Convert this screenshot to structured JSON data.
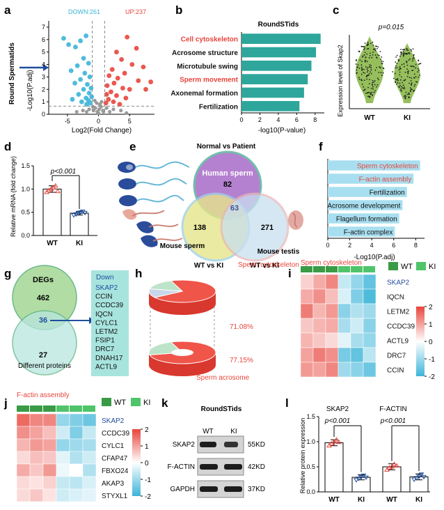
{
  "labels": {
    "a": "a",
    "b": "b",
    "c": "c",
    "d": "d",
    "e": "e",
    "f": "f",
    "g": "g",
    "h": "h",
    "i": "i",
    "j": "j",
    "k": "k",
    "l": "l"
  },
  "colors": {
    "teal": "#2ea69b",
    "red": "#e8453c",
    "blue": "#3cb4d8",
    "green": "#3a9b46",
    "lightgreen": "#4fc46a",
    "lightblue": "#a8dff0"
  },
  "panel_a": {
    "down_label": "DOWN:261",
    "up_label": "UP:237",
    "side_label": "Round Spermatids",
    "ylabel": "-Log10(P.adj)",
    "xlabel": "Log2(Fold Change)",
    "yticks": [
      "0",
      "1",
      "2",
      "3",
      "4",
      "5",
      "6",
      "7"
    ],
    "xticks": [
      "-5",
      "0",
      "5"
    ],
    "chart_data": {
      "type": "scatter",
      "xlim": [
        -8,
        9
      ],
      "ylim": [
        0,
        7.5
      ],
      "thresholds": {
        "logfc": [
          -1,
          1
        ],
        "padj": 0.65
      },
      "down_points": [
        [
          -5.6,
          6.1
        ],
        [
          -4.8,
          5.6
        ],
        [
          -3.7,
          5.4
        ],
        [
          -2.9,
          5.9
        ],
        [
          -2.0,
          6.3
        ],
        [
          -2.4,
          4.5
        ],
        [
          -1.6,
          4.1
        ],
        [
          -3.4,
          3.9
        ],
        [
          -4.4,
          3.5
        ],
        [
          -2.2,
          3.3
        ],
        [
          -1.4,
          3.0
        ],
        [
          -2.9,
          2.8
        ],
        [
          -1.8,
          2.4
        ],
        [
          -3.8,
          2.5
        ],
        [
          -1.2,
          2.1
        ],
        [
          -2.4,
          2.0
        ],
        [
          -1.5,
          1.7
        ],
        [
          -3.2,
          1.6
        ],
        [
          -1.1,
          1.4
        ],
        [
          -2.0,
          1.3
        ],
        [
          -1.6,
          1.1
        ],
        [
          -2.7,
          1.0
        ],
        [
          -1.3,
          0.9
        ],
        [
          -4.2,
          1.2
        ],
        [
          -1.9,
          0.8
        ]
      ],
      "up_points": [
        [
          4.6,
          6.2
        ],
        [
          6.1,
          5.3
        ],
        [
          2.9,
          5.0
        ],
        [
          3.7,
          4.4
        ],
        [
          5.4,
          4.0
        ],
        [
          7.2,
          3.8
        ],
        [
          2.2,
          3.6
        ],
        [
          4.2,
          3.3
        ],
        [
          1.7,
          3.1
        ],
        [
          3.1,
          2.9
        ],
        [
          6.4,
          2.7
        ],
        [
          2.5,
          2.5
        ],
        [
          1.4,
          2.3
        ],
        [
          3.9,
          2.1
        ],
        [
          5.0,
          2.0
        ],
        [
          2.0,
          1.8
        ],
        [
          1.3,
          1.6
        ],
        [
          2.9,
          1.5
        ],
        [
          4.4,
          1.3
        ],
        [
          1.6,
          1.2
        ],
        [
          2.4,
          1.0
        ],
        [
          1.2,
          0.9
        ],
        [
          3.4,
          0.8
        ],
        [
          8.4,
          2.6
        ],
        [
          7.6,
          2.0
        ]
      ],
      "ns_points": [
        [
          -0.8,
          0.3
        ],
        [
          -0.5,
          0.5
        ],
        [
          -0.2,
          0.2
        ],
        [
          0.1,
          0.4
        ],
        [
          0.4,
          0.6
        ],
        [
          0.7,
          0.3
        ],
        [
          -1.5,
          0.4
        ],
        [
          1.3,
          0.5
        ],
        [
          -0.3,
          0.9
        ],
        [
          0.2,
          0.8
        ],
        [
          -2.5,
          0.3
        ],
        [
          2.4,
          0.4
        ],
        [
          -0.9,
          0.6
        ],
        [
          0.8,
          0.2
        ],
        [
          -3.5,
          0.2
        ],
        [
          3.6,
          0.3
        ],
        [
          0.0,
          0.1
        ],
        [
          -0.6,
          1.1
        ],
        [
          0.5,
          1.0
        ],
        [
          1.8,
          0.2
        ],
        [
          -1.9,
          0.2
        ],
        [
          4.5,
          0.1
        ]
      ]
    }
  },
  "panel_b": {
    "title": "RoundSTids",
    "xlabel": "-log10(P-value)",
    "xticks": [
      "0",
      "2",
      "4",
      "6",
      "8"
    ],
    "chart_data": {
      "type": "bar",
      "orientation": "horizontal",
      "xlim": [
        0,
        9
      ],
      "categories": [
        "Cell cytoskeleton",
        "Acrosome structure",
        "Microtubule swing",
        "Sperm movement",
        "Axonemal formation",
        "Fertilization"
      ],
      "values": [
        8.6,
        8.1,
        7.6,
        7.2,
        6.8,
        6.3
      ],
      "highlight": [
        true,
        false,
        false,
        true,
        false,
        false
      ]
    }
  },
  "panel_c": {
    "pvalue": "p=0.015",
    "ylabel": "Expression level of Skap2",
    "chart_data": {
      "type": "violin",
      "categories": [
        "WT",
        "KI"
      ]
    }
  },
  "panel_d": {
    "ylabel": "Relative mRNA (fold change)",
    "pvalue": "p<0.001",
    "yticks": [
      "0.0",
      "0.5",
      "1.0",
      "1.5"
    ],
    "chart_data": {
      "type": "bar",
      "ylim": [
        0,
        1.5
      ],
      "categories": [
        "WT",
        "KI"
      ],
      "values": [
        1.0,
        0.48
      ],
      "errors": [
        0.07,
        0.04
      ],
      "wt_points": [
        0.93,
        0.97,
        1.0,
        1.03,
        1.07,
        0.95
      ],
      "ki_points": [
        0.44,
        0.46,
        0.48,
        0.5,
        0.52,
        0.49
      ]
    }
  },
  "panel_e": {
    "title": "Normal vs Patient",
    "sets": {
      "human": "Human sperm",
      "mouse_sperm": "Mouse sperm",
      "mouse_testis": "Mouse testis"
    },
    "counts": {
      "human": "82",
      "center": "63",
      "sperm": "138",
      "testis": "271"
    },
    "comparisons": [
      "WT vs KI",
      "WT vs KI"
    ]
  },
  "panel_f": {
    "xlabel": "-Log10(P.adj)",
    "xticks": [
      "0",
      "2",
      "4",
      "6",
      "8"
    ],
    "chart_data": {
      "type": "bar",
      "orientation": "horizontal",
      "xlim": [
        0,
        8.8
      ],
      "categories": [
        "Sperm cytoskeleton",
        "F-actin assembly",
        "Fertilization",
        "Acrosome development",
        "Flagellum formation",
        "F-actin complex"
      ],
      "values": [
        8.4,
        7.8,
        7.2,
        6.8,
        6.5,
        6.1
      ],
      "highlight": [
        true,
        true,
        false,
        false,
        false,
        false
      ]
    }
  },
  "panel_g": {
    "set1": "DEGs",
    "set2": "Different proteins",
    "n1": "462",
    "n_overlap": "36",
    "n2": "27",
    "list_title": "Down",
    "genes": [
      "SKAP2",
      "CCIN",
      "CCDC39",
      "IQCN",
      "CYLC1",
      "LETM2",
      "FSIP1",
      "DRC7",
      "DNAH17",
      "ACTL9"
    ]
  },
  "panel_h": {
    "label_top": "Sperm cytoskeleton",
    "label_bottom": "Sperm acrosome",
    "pct_top": "71.08%",
    "pct_bottom": "77.15%",
    "chart_data": {
      "type": "pie",
      "series": [
        {
          "name": "Sperm cytoskeleton",
          "values": [
            71.08,
            28.92
          ]
        },
        {
          "name": "Sperm acrosome",
          "values": [
            77.15,
            22.85
          ]
        }
      ]
    }
  },
  "panel_i": {
    "title": "Sperm cytoskeleton",
    "legend": {
      "wt": "WT",
      "ki": "KI"
    },
    "genes": [
      "SKAP2",
      "IQCN",
      "LETM2",
      "CCDC39",
      "ACTL9",
      "DRC7",
      "CCIN"
    ],
    "scale": [
      "2",
      "1",
      "0",
      "-1",
      "-2"
    ],
    "chart_data": {
      "type": "heatmap",
      "columns": [
        "WT",
        "WT",
        "WT",
        "KI",
        "KI",
        "KI"
      ],
      "rows": [
        [
          0.5,
          0.9,
          1.3,
          -0.6,
          -1.1,
          -1.6
        ],
        [
          0.9,
          1.2,
          0.7,
          -0.4,
          -1.3,
          -1.8
        ],
        [
          1.4,
          0.8,
          1.1,
          -1.2,
          -0.8,
          -1.0
        ],
        [
          0.6,
          0.8,
          0.9,
          -0.9,
          -0.5,
          -1.2
        ],
        [
          0.8,
          0.6,
          0.4,
          -0.3,
          -0.9,
          -1.1
        ],
        [
          1.0,
          1.4,
          1.2,
          -1.4,
          -1.6,
          -0.7
        ],
        [
          1.1,
          1.0,
          1.3,
          -1.0,
          -1.2,
          -1.5
        ]
      ]
    }
  },
  "panel_j": {
    "title": "F-actin assembly",
    "legend": {
      "wt": "WT",
      "ki": "KI"
    },
    "genes": [
      "SKAP2",
      "CCDC39",
      "CYLC1",
      "CFAP47",
      "FBXO24",
      "AKAP3",
      "STYXL1"
    ],
    "scale": [
      "2",
      "1",
      "0",
      "-1",
      "-2"
    ],
    "chart_data": {
      "type": "heatmap",
      "columns": [
        "WT",
        "WT",
        "WT",
        "KI",
        "KI",
        "KI"
      ],
      "rows": [
        [
          1.6,
          1.3,
          1.3,
          -1.1,
          -1.3,
          -1.5
        ],
        [
          1.2,
          1.0,
          0.7,
          -0.5,
          -1.3,
          -0.6
        ],
        [
          0.8,
          1.1,
          1.0,
          -1.1,
          -1.0,
          -0.9
        ],
        [
          0.4,
          0.7,
          0.6,
          -0.3,
          -0.8,
          -0.5
        ],
        [
          0.9,
          0.6,
          1.1,
          -0.2,
          0.0,
          -0.8
        ],
        [
          0.4,
          0.3,
          0.5,
          -0.6,
          -0.7,
          -0.4
        ],
        [
          0.4,
          0.6,
          0.3,
          -0.5,
          -0.4,
          -0.3
        ]
      ]
    }
  },
  "panel_k": {
    "title": "RoundSTids",
    "cols": [
      "WT",
      "KI"
    ],
    "bands": [
      {
        "name": "SKAP2",
        "kd": "55KD"
      },
      {
        "name": "F-ACTIN",
        "kd": "42KD"
      },
      {
        "name": "GAPDH",
        "kd": "37KD"
      }
    ]
  },
  "panel_l": {
    "ylabel": "Relative protein expression",
    "yticks": [
      "0.0",
      "0.5",
      "1.0",
      "1.5"
    ],
    "groups": [
      "SKAP2",
      "F-ACTIN"
    ],
    "pvalues": [
      "p<0.001",
      "p<0.001"
    ],
    "chart_data": {
      "type": "bar",
      "ylim": [
        0,
        1.5
      ],
      "categories": [
        "WT",
        "KI",
        "WT",
        "KI"
      ],
      "values": [
        0.98,
        0.29,
        0.5,
        0.3
      ],
      "errors": [
        0.06,
        0.05,
        0.06,
        0.06
      ],
      "points": [
        [
          0.92,
          0.96,
          1.0,
          1.04,
          0.99
        ],
        [
          0.24,
          0.27,
          0.3,
          0.33,
          0.29
        ],
        [
          0.44,
          0.48,
          0.5,
          0.55,
          0.52
        ],
        [
          0.25,
          0.28,
          0.31,
          0.35,
          0.3
        ]
      ]
    }
  }
}
